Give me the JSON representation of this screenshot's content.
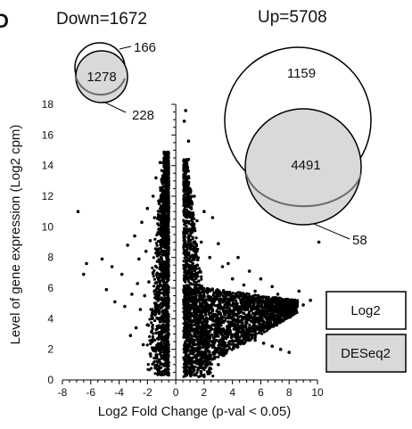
{
  "panel_label": "D",
  "chart_data": {
    "type": "scatter",
    "xlabel": "Log2 Fold Change (p-val < 0.05)",
    "ylabel": "Level of gene expression (Log2 cpm)",
    "xlim": [
      -8,
      10
    ],
    "ylim": [
      0,
      18
    ],
    "x_ticks": [
      -8,
      -6,
      -4,
      -2,
      0,
      2,
      4,
      6,
      8,
      10
    ],
    "y_ticks": [
      0,
      2,
      4,
      6,
      8,
      10,
      12,
      14,
      16,
      18
    ],
    "grid": false,
    "legend": {
      "placement": "right",
      "entries": [
        {
          "label": "Log2",
          "fill": "#ffffff"
        },
        {
          "label": "DESeq2",
          "fill": "#d9d9d9"
        }
      ]
    },
    "venn": {
      "down": {
        "title": "Down=1672",
        "counts": [
          "166",
          "1278",
          "228"
        ]
      },
      "up": {
        "title": "Up=5708",
        "counts": [
          "1159",
          "4491",
          "58"
        ]
      }
    },
    "series": [
      {
        "group": "down",
        "points": [
          [
            -6.9,
            11.0
          ],
          [
            -6.5,
            6.9
          ],
          [
            -6.3,
            7.6
          ],
          [
            -5.2,
            7.9
          ],
          [
            -4.9,
            5.9
          ],
          [
            -4.5,
            7.4
          ],
          [
            -4.3,
            5.1
          ],
          [
            -3.8,
            6.9
          ],
          [
            -3.6,
            4.8
          ],
          [
            -3.4,
            8.8
          ],
          [
            -3.2,
            2.9
          ],
          [
            -3.1,
            5.6
          ],
          [
            -2.9,
            9.4
          ],
          [
            -2.8,
            3.4
          ],
          [
            -2.7,
            6.3
          ],
          [
            -2.6,
            7.9
          ],
          [
            -2.5,
            4.6
          ],
          [
            -2.4,
            10.3
          ],
          [
            -2.3,
            2.3
          ],
          [
            -2.2,
            5.5
          ],
          [
            -2.1,
            8.4
          ],
          [
            -2.0,
            3.6
          ],
          [
            -2.0,
            11.2
          ],
          [
            -1.9,
            6.4
          ],
          [
            -1.8,
            1.7
          ],
          [
            -1.8,
            9.1
          ],
          [
            -1.7,
            4.2
          ],
          [
            -1.6,
            12.0
          ],
          [
            -1.6,
            7.0
          ],
          [
            -1.5,
            2.6
          ],
          [
            -1.5,
            10.6
          ],
          [
            -1.4,
            5.0
          ],
          [
            -1.4,
            13.2
          ],
          [
            -1.3,
            0.7
          ],
          [
            -1.3,
            8.1
          ],
          [
            -1.2,
            3.1
          ],
          [
            -1.2,
            11.7
          ],
          [
            -1.1,
            6.2
          ],
          [
            -1.1,
            14.2
          ],
          [
            -1.0,
            1.4
          ],
          [
            -1.0,
            9.5
          ],
          [
            -0.9,
            4.4
          ],
          [
            -0.9,
            12.6
          ],
          [
            -0.8,
            7.3
          ],
          [
            -0.8,
            14.8
          ],
          [
            -0.75,
            2.2
          ],
          [
            -0.7,
            10.2
          ],
          [
            -0.7,
            5.6
          ],
          [
            -0.65,
            0.4
          ],
          [
            -0.6,
            13.7
          ],
          [
            -0.6,
            8.6
          ],
          [
            -0.55,
            3.4
          ],
          [
            -0.5,
            11.3
          ],
          [
            -0.5,
            6.8
          ]
        ]
      },
      {
        "group": "up",
        "points": [
          [
            0.6,
            16.9
          ],
          [
            0.7,
            17.6
          ],
          [
            0.9,
            15.6
          ],
          [
            0.7,
            13.9
          ],
          [
            0.9,
            14.4
          ],
          [
            1.0,
            12.3
          ],
          [
            1.1,
            10.8
          ],
          [
            0.8,
            9.6
          ],
          [
            1.3,
            12.0
          ],
          [
            1.5,
            10.4
          ],
          [
            1.8,
            9.0
          ],
          [
            1.2,
            7.6
          ],
          [
            2.0,
            11.0
          ],
          [
            2.4,
            8.0
          ],
          [
            2.6,
            10.6
          ],
          [
            3.0,
            8.9
          ],
          [
            3.3,
            7.4
          ],
          [
            3.7,
            7.6
          ],
          [
            4.0,
            6.6
          ],
          [
            4.4,
            8.0
          ],
          [
            4.8,
            6.2
          ],
          [
            5.2,
            7.1
          ],
          [
            5.6,
            5.8
          ],
          [
            6.0,
            6.6
          ],
          [
            6.4,
            5.3
          ],
          [
            6.8,
            6.1
          ],
          [
            7.2,
            5.6
          ],
          [
            7.6,
            4.9
          ],
          [
            8.0,
            5.2
          ],
          [
            8.4,
            4.6
          ],
          [
            8.7,
            5.8
          ],
          [
            9.0,
            4.9
          ],
          [
            9.5,
            5.2
          ],
          [
            10.1,
            9.0
          ],
          [
            1.4,
            6.0
          ],
          [
            2.0,
            5.2
          ],
          [
            2.6,
            4.5
          ],
          [
            3.2,
            4.0
          ],
          [
            3.8,
            3.6
          ],
          [
            4.4,
            3.2
          ],
          [
            5.0,
            2.9
          ],
          [
            5.6,
            2.6
          ],
          [
            6.2,
            2.4
          ],
          [
            6.8,
            2.2
          ],
          [
            7.4,
            2.0
          ],
          [
            8.0,
            1.8
          ],
          [
            1.0,
            3.0
          ],
          [
            1.5,
            2.0
          ],
          [
            2.2,
            1.3
          ],
          [
            3.0,
            1.0
          ],
          [
            0.7,
            1.2
          ],
          [
            0.8,
            4.4
          ],
          [
            1.0,
            5.6
          ],
          [
            1.8,
            4.1
          ]
        ]
      }
    ],
    "down_fill": {
      "bottom": 0.3,
      "top": 14.9,
      "inner_x": -0.5,
      "outer_x_low": -2.2,
      "outer_x_high": -0.9
    },
    "up_fill": {
      "bottom": 0.2,
      "tip_x": 8.6,
      "tip_y": 5.2,
      "inner_x": 0.6,
      "inner_top": 6.2
    }
  }
}
